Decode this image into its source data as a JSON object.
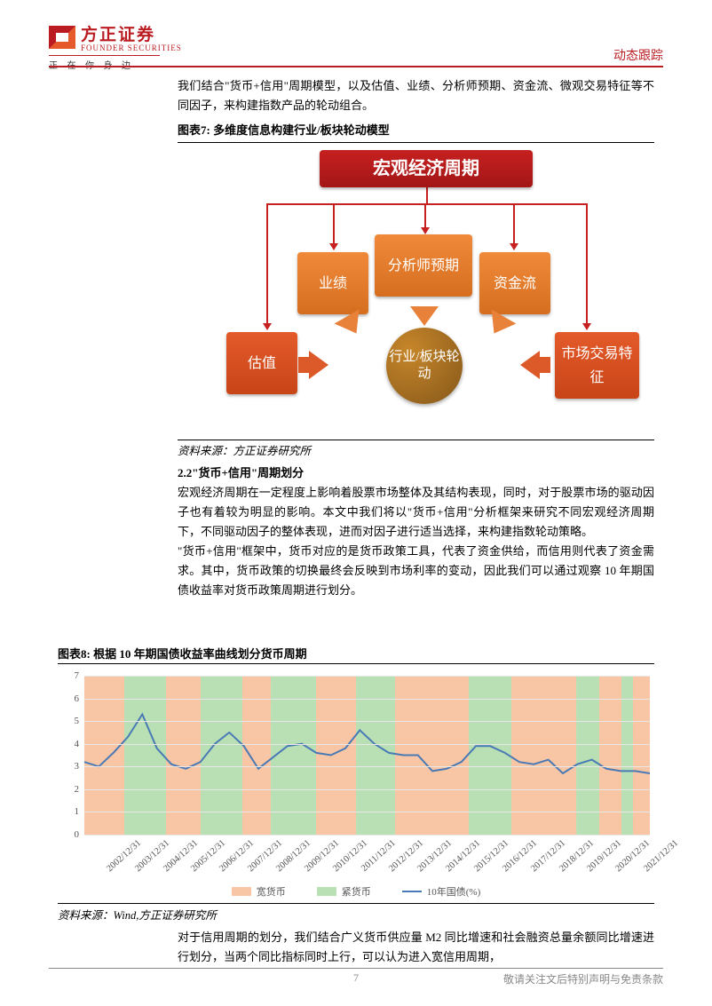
{
  "header": {
    "company_cn": "方正证券",
    "company_en": "FOUNDER SECURITIES",
    "slogan": "正 在 你 身 边",
    "doc_type": "动态跟踪"
  },
  "intro_para": "我们结合\"货币+信用\"周期模型，以及估值、业绩、分析师预期、资金流、微观交易特征等不同因子，来构建指数产品的轮动组合。",
  "figure7": {
    "title": "图表7: 多维度信息构建行业/板块轮动模型",
    "source": "资料来源：方正证券研究所",
    "nodes": {
      "macro": "宏观经济周期",
      "yeji": "业绩",
      "fenxi": "分析师预期",
      "zijin": "资金流",
      "guzhi": "估值",
      "shichang": "市场交易特征",
      "center": "行业/板块轮动"
    },
    "colors": {
      "macro": "#b51818",
      "mid_tier": "#e8813a",
      "bottom_tier": "#dc5a2a",
      "center": "#9a6a22",
      "red_line": "#c62020"
    }
  },
  "section_2_2": {
    "heading": "2.2\"货币+信用\"周期划分",
    "para1": "宏观经济周期在一定程度上影响着股票市场整体及其结构表现，同时，对于股票市场的驱动因子也有着较为明显的影响。本文中我们将以\"货币+信用\"分析框架来研究不同宏观经济周期下，不同驱动因子的整体表现，进而对因子进行适当选择，来构建指数轮动策略。",
    "para2": "\"货币+信用\"框架中，货币对应的是货币政策工具，代表了资金供给，而信用则代表了资金需求。其中，货币政策的切换最终会反映到市场利率的变动，因此我们可以通过观察 10 年期国债收益率对货币政策周期进行划分。"
  },
  "figure8": {
    "title": "图表8: 根据 10 年期国债收益率曲线划分货币周期",
    "source": "资料来源：Wind,方正证券研究所",
    "ylim": [
      0,
      7
    ],
    "ytick_step": 1,
    "x_categories": [
      "2002/12/31",
      "2003/12/31",
      "2004/12/31",
      "2005/12/31",
      "2006/12/31",
      "2007/12/31",
      "2008/12/31",
      "2009/12/31",
      "2010/12/31",
      "2011/12/31",
      "2012/12/31",
      "2013/12/31",
      "2014/12/31",
      "2015/12/31",
      "2016/12/31",
      "2017/12/31",
      "2018/12/31",
      "2019/12/31",
      "2020/12/31",
      "2021/12/31"
    ],
    "bands": [
      {
        "type": "loose",
        "start": 0.0,
        "end": 1.4
      },
      {
        "type": "tight",
        "start": 1.4,
        "end": 2.9
      },
      {
        "type": "loose",
        "start": 2.9,
        "end": 4.1
      },
      {
        "type": "tight",
        "start": 4.1,
        "end": 5.6
      },
      {
        "type": "loose",
        "start": 5.6,
        "end": 6.6
      },
      {
        "type": "tight",
        "start": 6.6,
        "end": 8.2
      },
      {
        "type": "loose",
        "start": 8.2,
        "end": 9.6
      },
      {
        "type": "tight",
        "start": 9.6,
        "end": 11.0
      },
      {
        "type": "loose",
        "start": 11.0,
        "end": 13.6
      },
      {
        "type": "tight",
        "start": 13.6,
        "end": 15.1
      },
      {
        "type": "loose",
        "start": 15.1,
        "end": 17.4
      },
      {
        "type": "tight",
        "start": 17.4,
        "end": 18.2
      },
      {
        "type": "loose",
        "start": 18.2,
        "end": 19.0
      },
      {
        "type": "tight",
        "start": 19.0,
        "end": 19.4
      },
      {
        "type": "loose",
        "start": 19.4,
        "end": 20.0
      }
    ],
    "band_colors": {
      "loose": "#f8c6a5",
      "tight": "#b9e0b4"
    },
    "line_color": "#4a7ab5",
    "line_values": [
      3.2,
      3.0,
      3.6,
      4.3,
      5.3,
      3.8,
      3.1,
      2.9,
      3.2,
      4.0,
      4.5,
      3.9,
      2.9,
      3.4,
      3.9,
      4.0,
      3.6,
      3.5,
      3.8,
      4.6,
      4.0,
      3.6,
      3.5,
      3.5,
      2.8,
      2.9,
      3.2,
      3.9,
      3.9,
      3.6,
      3.2,
      3.1,
      3.3,
      2.7,
      3.1,
      3.3,
      2.9,
      2.8,
      2.8,
      2.7
    ],
    "legend": {
      "loose": "宽货币",
      "tight": "紧货币",
      "line": "10年国债(%)"
    }
  },
  "closing_para": "对于信用周期的划分，我们结合广义货币供应量 M2 同比增速和社会融资总量余额同比增速进行划分，当两个同比指标同时上行，可以认为进入宽信用周期，",
  "footer": {
    "page": "7",
    "disclaimer": "敬请关注文后特别声明与免责条款"
  }
}
